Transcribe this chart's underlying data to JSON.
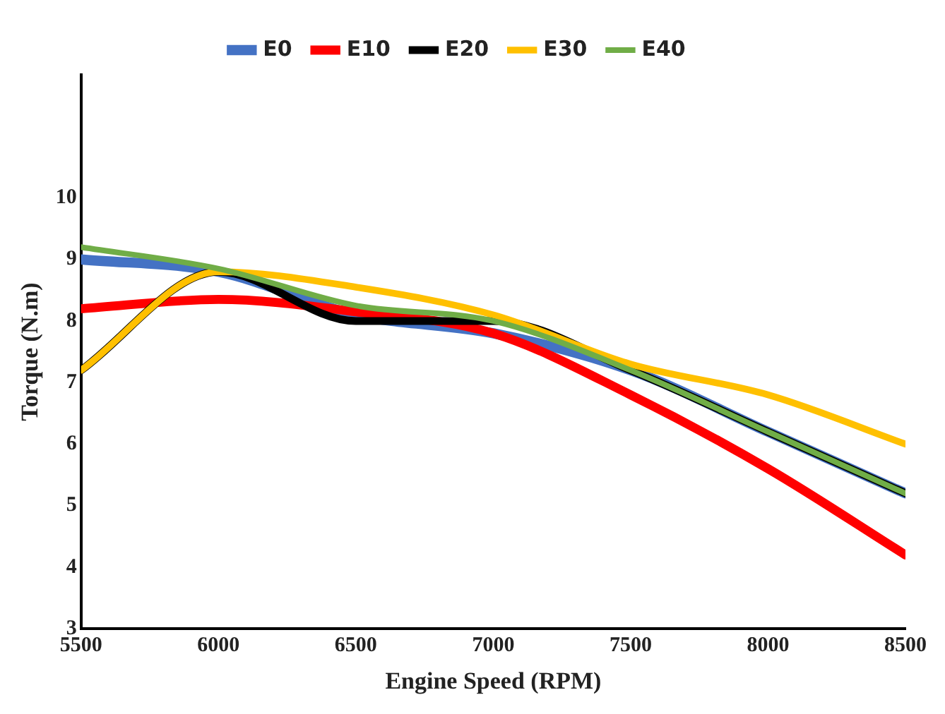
{
  "chart_data": {
    "type": "line",
    "xlabel": "Engine Speed (RPM)",
    "ylabel": "Torque (N.m)",
    "x": [
      5500,
      6000,
      6500,
      7000,
      7500,
      8000,
      8500
    ],
    "series": [
      {
        "name": "E0",
        "color": "#4472c4",
        "values": [
          9.0,
          8.8,
          8.1,
          7.8,
          7.2,
          6.2,
          5.2
        ]
      },
      {
        "name": "E10",
        "color": "#ff0000",
        "values": [
          8.2,
          8.35,
          8.15,
          7.8,
          6.8,
          5.6,
          4.2
        ]
      },
      {
        "name": "E20",
        "color": "#000000",
        "values": [
          7.2,
          8.8,
          8.0,
          8.0,
          7.2,
          6.2,
          5.2
        ]
      },
      {
        "name": "E30",
        "color": "#ffc000",
        "values": [
          7.2,
          8.8,
          8.55,
          8.1,
          7.3,
          6.8,
          6.0
        ]
      },
      {
        "name": "E40",
        "color": "#70ad47",
        "values": [
          9.2,
          8.85,
          8.25,
          8.0,
          7.2,
          6.2,
          5.2
        ]
      }
    ],
    "xlim": [
      5500,
      8500
    ],
    "xticks": [
      5500,
      6000,
      6500,
      7000,
      7500,
      8000,
      8500
    ],
    "ylim": [
      3,
      12
    ],
    "yticks": [
      3,
      4,
      5,
      6,
      7,
      8,
      9,
      10
    ],
    "grid": false,
    "legend": "top",
    "marker": "none",
    "line_style": "solid"
  }
}
